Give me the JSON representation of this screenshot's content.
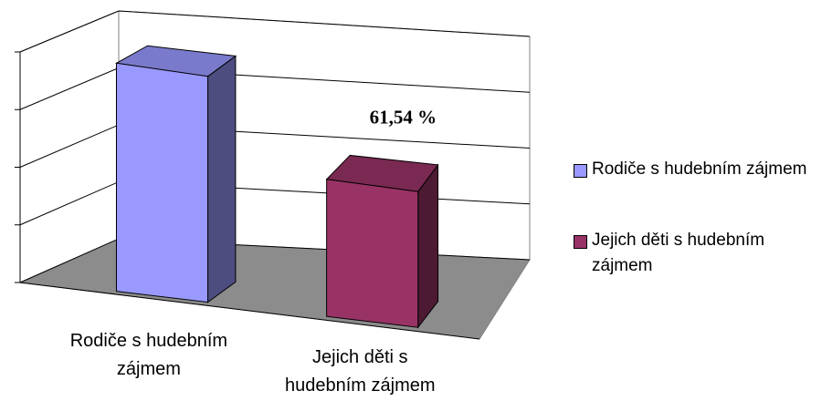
{
  "chart_data": {
    "type": "bar3d",
    "categories": [
      "Rodiče s hudebním zájmem",
      "Jejich děti s hudebním zájmem"
    ],
    "values": [
      100,
      61.54
    ],
    "value_labels": [
      null,
      "61,54 %"
    ],
    "colors": [
      "#9999ff",
      "#993366"
    ],
    "ylim": [
      0,
      100
    ],
    "yticks": [
      0,
      25,
      50,
      75,
      100
    ],
    "grid": true,
    "legend": "right"
  }
}
